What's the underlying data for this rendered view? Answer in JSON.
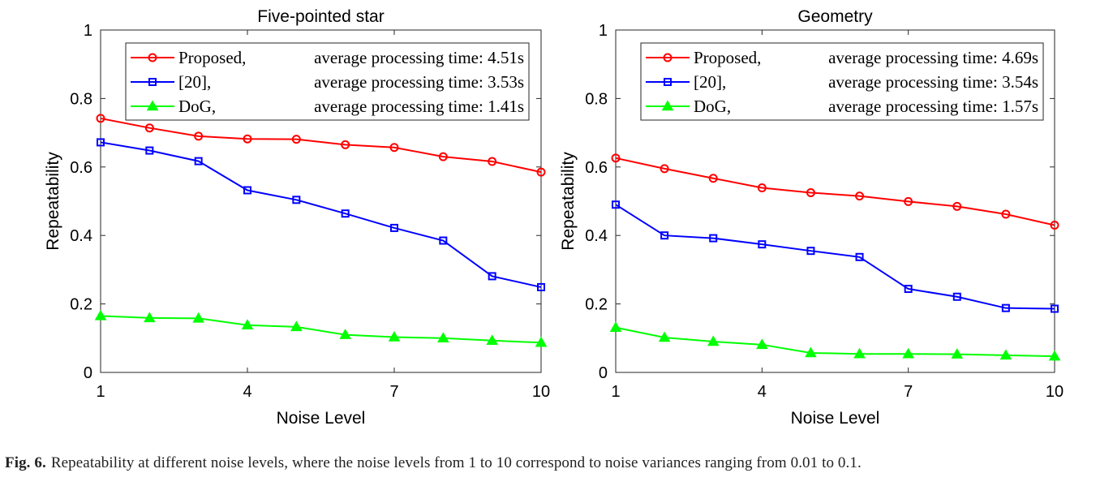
{
  "chart_data": [
    {
      "type": "line",
      "title": "Five-pointed star",
      "xlabel": "Noise Level",
      "ylabel": "Repeatability",
      "xlim": [
        1,
        10
      ],
      "ylim": [
        0,
        1
      ],
      "xticks": [
        1,
        4,
        7,
        10
      ],
      "yticks": [
        0,
        0.2,
        0.4,
        0.6,
        0.8,
        1
      ],
      "ytick_labels": [
        "0",
        "0.2",
        "0.4",
        "0.6",
        "0.8",
        "1"
      ],
      "x": [
        1,
        2,
        3,
        4,
        5,
        6,
        7,
        8,
        9,
        10
      ],
      "legend_position": "top-right",
      "grid": false,
      "series": [
        {
          "name": "Proposed,",
          "time_label": "average processing time: 4.51s",
          "color": "#ff0000",
          "marker": "circle",
          "values": [
            0.742,
            0.714,
            0.69,
            0.682,
            0.681,
            0.665,
            0.657,
            0.63,
            0.616,
            0.585
          ]
        },
        {
          "name": "[20],",
          "time_label": "average processing time: 3.53s",
          "color": "#0000ff",
          "marker": "square",
          "values": [
            0.672,
            0.648,
            0.617,
            0.532,
            0.504,
            0.464,
            0.422,
            0.385,
            0.281,
            0.249
          ]
        },
        {
          "name": "DoG,",
          "time_label": "average processing time: 1.41s",
          "color": "#00ff00",
          "marker": "triangle",
          "values": [
            0.165,
            0.159,
            0.158,
            0.138,
            0.133,
            0.11,
            0.103,
            0.1,
            0.093,
            0.087
          ]
        }
      ]
    },
    {
      "type": "line",
      "title": "Geometry",
      "xlabel": "Noise Level",
      "ylabel": "Repeatability",
      "xlim": [
        1,
        10
      ],
      "ylim": [
        0,
        1
      ],
      "xticks": [
        1,
        4,
        7,
        10
      ],
      "yticks": [
        0,
        0.2,
        0.4,
        0.6,
        0.8,
        1
      ],
      "ytick_labels": [
        "0",
        "0.2",
        "0.4",
        "0.6",
        "0.8",
        "1"
      ],
      "x": [
        1,
        2,
        3,
        4,
        5,
        6,
        7,
        8,
        9,
        10
      ],
      "legend_position": "top-right",
      "grid": false,
      "series": [
        {
          "name": "Proposed,",
          "time_label": "average processing time: 4.69s",
          "color": "#ff0000",
          "marker": "circle",
          "values": [
            0.626,
            0.595,
            0.567,
            0.539,
            0.525,
            0.515,
            0.499,
            0.485,
            0.462,
            0.43
          ]
        },
        {
          "name": "[20],",
          "time_label": "average processing time: 3.54s",
          "color": "#0000ff",
          "marker": "square",
          "values": [
            0.49,
            0.4,
            0.392,
            0.374,
            0.355,
            0.337,
            0.244,
            0.221,
            0.188,
            0.186
          ]
        },
        {
          "name": "DoG,",
          "time_label": "average processing time: 1.57s",
          "color": "#00ff00",
          "marker": "triangle",
          "values": [
            0.131,
            0.102,
            0.09,
            0.081,
            0.057,
            0.054,
            0.054,
            0.053,
            0.05,
            0.047
          ]
        }
      ]
    }
  ],
  "caption": {
    "label": "Fig. 6.",
    "text": "Repeatability at different noise levels, where the noise levels from 1 to 10 correspond to noise variances ranging from 0.01 to 0.1."
  }
}
